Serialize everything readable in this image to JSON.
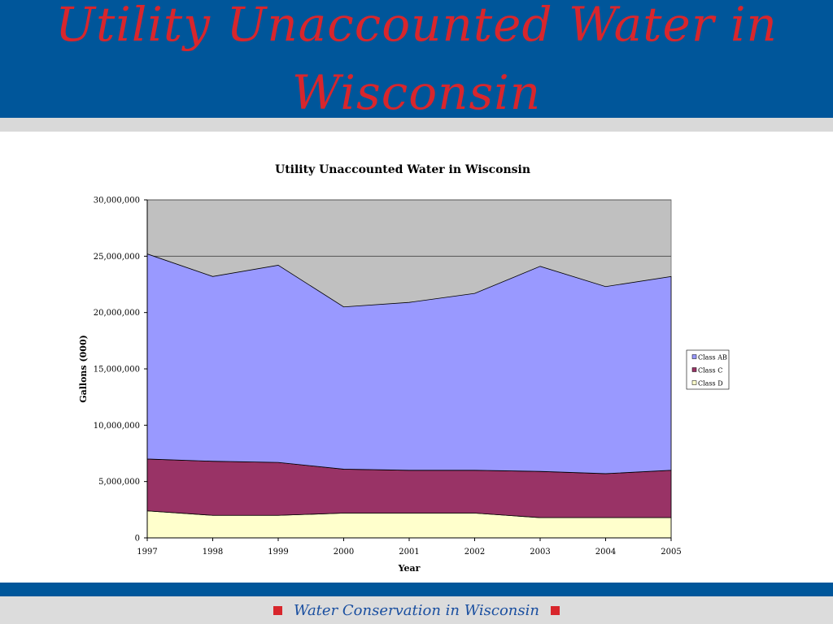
{
  "slide": {
    "title": "Utility Unaccounted Water in Wisconsin",
    "footer_text": "Water Conservation in Wisconsin"
  },
  "colors": {
    "header_blue": "#00569a",
    "title_red": "#d8262c",
    "plot_background": "#c0c0c0",
    "class_ab": "#9999ff",
    "class_c": "#993366",
    "class_d": "#ffffcc"
  },
  "chart_data": {
    "type": "area",
    "stacked": true,
    "title": "Utility Unaccounted Water in Wisconsin",
    "xlabel": "Year",
    "ylabel": "Gallons (000)",
    "x": [
      "1997",
      "1998",
      "1999",
      "2000",
      "2001",
      "2002",
      "2003",
      "2004",
      "2005"
    ],
    "ylim": [
      0,
      30000000
    ],
    "yticks": [
      0,
      5000000,
      10000000,
      15000000,
      20000000,
      25000000,
      30000000
    ],
    "ytick_labels": [
      "0",
      "5,000,000",
      "10,000,000",
      "15,000,000",
      "20,000,000",
      "25,000,000",
      "30,000,000"
    ],
    "grid": "horizontal",
    "legend_position": "right",
    "series": [
      {
        "name": "Class AB",
        "color": "#9999ff",
        "values": [
          18200000,
          16400000,
          17500000,
          14400000,
          14900000,
          15700000,
          18200000,
          16600000,
          17200000
        ]
      },
      {
        "name": "Class C",
        "color": "#993366",
        "values": [
          4600000,
          4800000,
          4700000,
          3900000,
          3800000,
          3800000,
          4100000,
          3900000,
          4200000
        ]
      },
      {
        "name": "Class D",
        "color": "#ffffcc",
        "values": [
          2400000,
          2000000,
          2000000,
          2200000,
          2200000,
          2200000,
          1800000,
          1800000,
          1800000
        ]
      }
    ]
  }
}
